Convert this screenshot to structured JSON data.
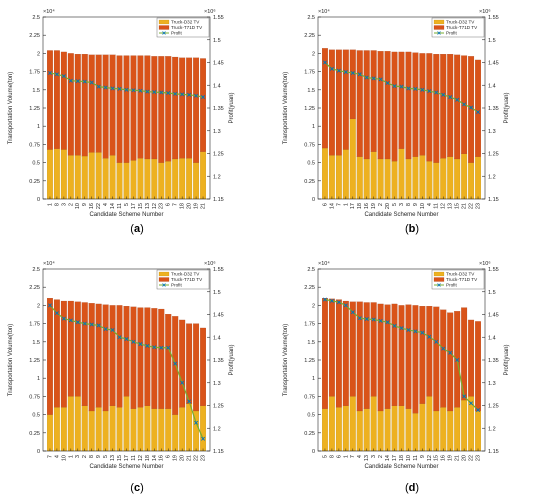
{
  "figure": {
    "panels": [
      {
        "caption_letter": "a",
        "caption": "(a)"
      },
      {
        "caption_letter": "b",
        "caption": "(b)"
      },
      {
        "caption_letter": "c",
        "caption": "(c)"
      },
      {
        "caption_letter": "d",
        "caption": "(d)"
      }
    ]
  },
  "colors": {
    "d32": "#EDB120",
    "t71d": "#D95319",
    "profit_line": "#77AC30",
    "profit_marker": "#0072BD",
    "axis": "#262626",
    "grid": "#e6e6e6"
  },
  "chart_data": [
    {
      "type": "bar",
      "panel": "(a)",
      "stacked": true,
      "xlabel": "Candidate Scheme Number",
      "ylabel": "Transportation Volume(ton)",
      "y2label": "Profit(yuan)",
      "y_exponent": "×10⁴",
      "y2_exponent": "×10⁶",
      "ylim": [
        0,
        2.5
      ],
      "yticks": [
        "0",
        "0.25",
        "0.5",
        "0.75",
        "1",
        "1.25",
        "1.5",
        "1.75",
        "2",
        "2.25",
        "2.5"
      ],
      "y2lim": [
        1.15,
        1.55
      ],
      "y2ticks": [
        "1.15",
        "1.2",
        "1.25",
        "1.3",
        "1.35",
        "1.4",
        "1.45",
        "1.5",
        "1.55"
      ],
      "legend_position": "top-right",
      "categories": [
        "1",
        "8",
        "3",
        "2",
        "10",
        "9",
        "16",
        "22",
        "4",
        "14",
        "11",
        "5",
        "17",
        "15",
        "13",
        "12",
        "23",
        "6",
        "7",
        "18",
        "20",
        "19",
        "21"
      ],
      "series": [
        {
          "name": "Truck-D32 TV",
          "axis": "left",
          "values": [
            0.68,
            0.69,
            0.68,
            0.6,
            0.6,
            0.59,
            0.64,
            0.64,
            0.56,
            0.6,
            0.5,
            0.5,
            0.53,
            0.56,
            0.55,
            0.55,
            0.5,
            0.52,
            0.55,
            0.56,
            0.56,
            0.5,
            0.65
          ]
        },
        {
          "name": "Truck-T71D TV",
          "axis": "left",
          "values": [
            1.36,
            1.35,
            1.34,
            1.4,
            1.39,
            1.4,
            1.34,
            1.34,
            1.42,
            1.38,
            1.47,
            1.47,
            1.44,
            1.41,
            1.42,
            1.41,
            1.46,
            1.44,
            1.4,
            1.38,
            1.38,
            1.44,
            1.28
          ]
        },
        {
          "name": "Profit",
          "axis": "right",
          "values": [
            1.427,
            1.424,
            1.42,
            1.41,
            1.409,
            1.408,
            1.406,
            1.397,
            1.395,
            1.393,
            1.392,
            1.39,
            1.389,
            1.388,
            1.386,
            1.385,
            1.384,
            1.383,
            1.381,
            1.38,
            1.379,
            1.377,
            1.374
          ]
        }
      ]
    },
    {
      "type": "bar",
      "panel": "(b)",
      "stacked": true,
      "xlabel": "Candidate Scheme Number",
      "ylabel": "Transportation Volume(ton)",
      "y2label": "Profit(yuan)",
      "y_exponent": "×10⁴",
      "y2_exponent": "×10⁶",
      "ylim": [
        0,
        2.5
      ],
      "yticks": [
        "0",
        "0.25",
        "0.5",
        "0.75",
        "1",
        "1.25",
        "1.5",
        "1.75",
        "2",
        "2.25",
        "2.5"
      ],
      "y2lim": [
        1.15,
        1.55
      ],
      "y2ticks": [
        "1.15",
        "1.2",
        "1.25",
        "1.3",
        "1.35",
        "1.4",
        "1.45",
        "1.5",
        "1.55"
      ],
      "legend_position": "top-right",
      "categories": [
        "6",
        "14",
        "7",
        "1",
        "17",
        "18",
        "16",
        "19",
        "2",
        "20",
        "5",
        "3",
        "8",
        "9",
        "10",
        "4",
        "11",
        "12",
        "13",
        "15",
        "21",
        "22",
        "23"
      ],
      "series": [
        {
          "name": "Truck-D32 TV",
          "axis": "left",
          "values": [
            0.7,
            0.6,
            0.6,
            0.68,
            1.1,
            0.58,
            0.55,
            0.65,
            0.55,
            0.55,
            0.52,
            0.69,
            0.55,
            0.58,
            0.6,
            0.52,
            0.5,
            0.56,
            0.58,
            0.55,
            0.62,
            0.5,
            0.58
          ]
        },
        {
          "name": "Truck-T71D TV",
          "axis": "left",
          "values": [
            1.37,
            1.45,
            1.45,
            1.37,
            0.95,
            1.46,
            1.49,
            1.39,
            1.48,
            1.48,
            1.5,
            1.33,
            1.47,
            1.43,
            1.4,
            1.48,
            1.49,
            1.43,
            1.41,
            1.43,
            1.35,
            1.46,
            1.33
          ]
        },
        {
          "name": "Profit",
          "axis": "right",
          "values": [
            1.45,
            1.436,
            1.432,
            1.429,
            1.427,
            1.424,
            1.417,
            1.415,
            1.413,
            1.405,
            1.398,
            1.397,
            1.393,
            1.392,
            1.39,
            1.387,
            1.384,
            1.379,
            1.374,
            1.368,
            1.358,
            1.351,
            1.341
          ]
        }
      ]
    },
    {
      "type": "bar",
      "panel": "(c)",
      "stacked": true,
      "xlabel": "Candidate Scheme Number",
      "ylabel": "Transportation Volume(ton)",
      "y2label": "Profit(yuan)",
      "y_exponent": "×10⁴",
      "y2_exponent": "×10⁶",
      "ylim": [
        0,
        2.5
      ],
      "yticks": [
        "0",
        "0.25",
        "0.5",
        "0.75",
        "1",
        "1.25",
        "1.5",
        "1.75",
        "2",
        "2.25",
        "2.5"
      ],
      "y2lim": [
        1.15,
        1.55
      ],
      "y2ticks": [
        "1.15",
        "1.2",
        "1.25",
        "1.3",
        "1.35",
        "1.4",
        "1.45",
        "1.5",
        "1.55"
      ],
      "legend_position": "top-right",
      "categories": [
        "7",
        "4",
        "10",
        "1",
        "3",
        "2",
        "8",
        "9",
        "5",
        "13",
        "15",
        "17",
        "11",
        "12",
        "18",
        "14",
        "16",
        "6",
        "19",
        "20",
        "21",
        "22",
        "23"
      ],
      "series": [
        {
          "name": "Truck-D32 TV",
          "axis": "left",
          "values": [
            0.5,
            0.6,
            0.6,
            0.75,
            0.75,
            0.62,
            0.55,
            0.6,
            0.55,
            0.62,
            0.6,
            0.75,
            0.58,
            0.6,
            0.62,
            0.58,
            0.58,
            0.58,
            0.5,
            0.6,
            0.65,
            0.55,
            0.62
          ]
        },
        {
          "name": "Truck-T71D TV",
          "axis": "left",
          "values": [
            1.6,
            1.48,
            1.46,
            1.31,
            1.3,
            1.42,
            1.48,
            1.42,
            1.46,
            1.38,
            1.4,
            1.24,
            1.4,
            1.37,
            1.35,
            1.38,
            1.37,
            1.3,
            1.35,
            1.2,
            1.1,
            1.2,
            1.07
          ]
        },
        {
          "name": "Profit",
          "axis": "right",
          "values": [
            1.47,
            1.453,
            1.441,
            1.437,
            1.433,
            1.43,
            1.428,
            1.426,
            1.418,
            1.416,
            1.4,
            1.396,
            1.39,
            1.385,
            1.381,
            1.378,
            1.377,
            1.377,
            1.342,
            1.3,
            1.259,
            1.212,
            1.177
          ]
        }
      ]
    },
    {
      "type": "bar",
      "panel": "(d)",
      "stacked": true,
      "xlabel": "Candidate Scheme Number",
      "ylabel": "Transportation Volume(ton)",
      "y2label": "Profit(yuan)",
      "y_exponent": "×10⁴",
      "y2_exponent": "×10⁶",
      "ylim": [
        0,
        2.5
      ],
      "yticks": [
        "0",
        "0.25",
        "0.5",
        "0.75",
        "1",
        "1.25",
        "1.5",
        "1.75",
        "2",
        "2.25",
        "2.5"
      ],
      "y2lim": [
        1.15,
        1.55
      ],
      "y2ticks": [
        "1.15",
        "1.2",
        "1.25",
        "1.3",
        "1.35",
        "1.4",
        "1.45",
        "1.5",
        "1.55"
      ],
      "legend_position": "top-right",
      "categories": [
        "5",
        "8",
        "6",
        "1",
        "7",
        "4",
        "13",
        "3",
        "2",
        "14",
        "17",
        "18",
        "10",
        "11",
        "9",
        "12",
        "15",
        "16",
        "19",
        "21",
        "20",
        "22",
        "23"
      ],
      "series": [
        {
          "name": "Truck-D32 TV",
          "axis": "left",
          "values": [
            0.58,
            0.75,
            0.6,
            0.62,
            0.75,
            0.55,
            0.58,
            0.75,
            0.55,
            0.58,
            0.62,
            0.62,
            0.58,
            0.52,
            0.65,
            0.75,
            0.55,
            0.6,
            0.55,
            0.6,
            0.7,
            0.75,
            0.55
          ]
        },
        {
          "name": "Truck-T71D TV",
          "axis": "left",
          "values": [
            1.52,
            1.34,
            1.48,
            1.44,
            1.3,
            1.5,
            1.46,
            1.29,
            1.47,
            1.43,
            1.4,
            1.38,
            1.43,
            1.48,
            1.34,
            1.24,
            1.43,
            1.34,
            1.35,
            1.32,
            1.27,
            1.05,
            1.23
          ]
        },
        {
          "name": "Profit",
          "axis": "right",
          "values": [
            1.483,
            1.48,
            1.477,
            1.47,
            1.455,
            1.442,
            1.44,
            1.439,
            1.436,
            1.433,
            1.425,
            1.42,
            1.416,
            1.413,
            1.41,
            1.401,
            1.39,
            1.375,
            1.366,
            1.35,
            1.27,
            1.255,
            1.24
          ]
        }
      ]
    }
  ]
}
